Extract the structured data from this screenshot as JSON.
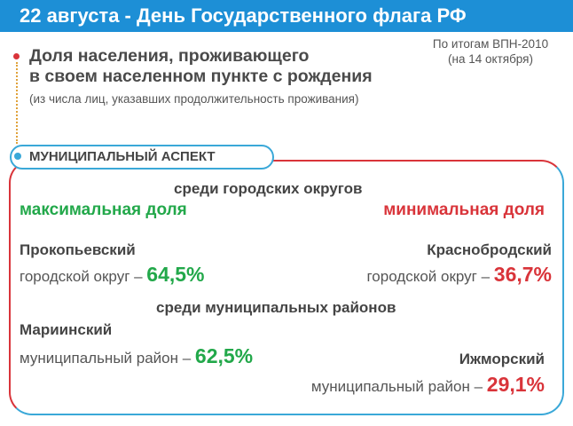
{
  "header": {
    "title": "22 августа - День Государственного флага РФ"
  },
  "source": {
    "line1": "По итогам ВПН-2010",
    "line2": "(на 14 октября)"
  },
  "slide": {
    "title_line1": "Доля населения, проживающего",
    "title_line2": "в своем населенном пункте с рождения",
    "subtitle": "(из числа лиц, указавших продолжительность проживания)"
  },
  "aspect": {
    "label": "МУНИЦИПАЛЬНЫЙ АСПЕКТ"
  },
  "sections": {
    "cities": "среди городских округов",
    "districts": "среди муниципальных районов"
  },
  "labels": {
    "max": "максимальная доля",
    "min": "минимальная доля"
  },
  "entries": {
    "city_max": {
      "name": "Прокопьевский",
      "type": "городской округ – ",
      "value": "64,5%"
    },
    "city_min": {
      "name": "Краснобродский",
      "type": "городской округ – ",
      "value": "36,7%"
    },
    "district_max": {
      "name": "Мариинский",
      "type": "муниципальный район – ",
      "value": "62,5%"
    },
    "district_min": {
      "name": "Ижморский",
      "type": "муниципальный район – ",
      "value": "29,1%"
    }
  },
  "colors": {
    "banner": "#1d8fd6",
    "max": "#22a84a",
    "min": "#d9343a",
    "accent": "#3aa8d8"
  }
}
